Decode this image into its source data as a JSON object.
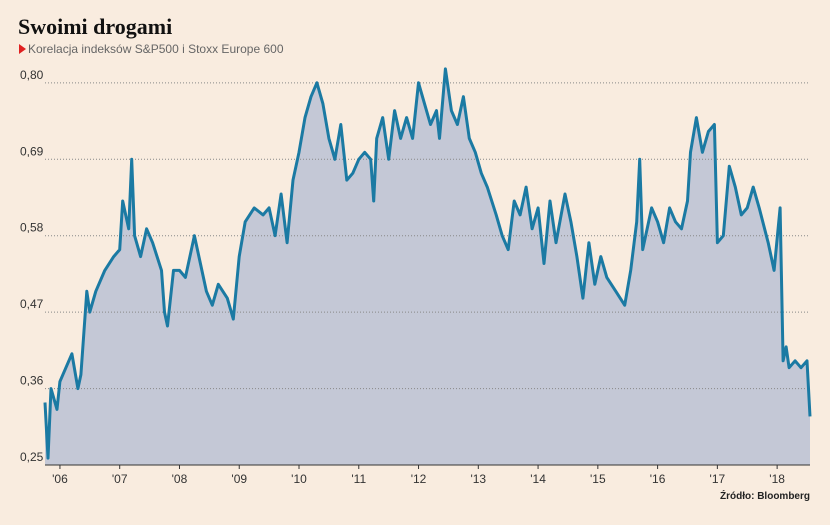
{
  "chart_data": {
    "type": "area",
    "title": "Swoimi drogami",
    "subtitle": "Korelacja indeksów S&P500 i Stoxx Europe 600",
    "source": "Źródło: Bloomberg",
    "color": "#1b7aa3",
    "area_color": "#c4c8d6",
    "grid": true,
    "xlim": [
      2005.75,
      2018.55
    ],
    "xticks": [
      {
        "value": 2006,
        "label": "'06"
      },
      {
        "value": 2007,
        "label": "'07"
      },
      {
        "value": 2008,
        "label": "'08"
      },
      {
        "value": 2009,
        "label": "'09"
      },
      {
        "value": 2010,
        "label": "'10"
      },
      {
        "value": 2011,
        "label": "'11"
      },
      {
        "value": 2012,
        "label": "'12"
      },
      {
        "value": 2013,
        "label": "'13"
      },
      {
        "value": 2014,
        "label": "'14"
      },
      {
        "value": 2015,
        "label": "'15"
      },
      {
        "value": 2016,
        "label": "'16"
      },
      {
        "value": 2017,
        "label": "'17"
      },
      {
        "value": 2018,
        "label": "'18"
      }
    ],
    "ylim": [
      0.25,
      0.83
    ],
    "yticks": [
      {
        "value": 0.25,
        "label": "0,25"
      },
      {
        "value": 0.36,
        "label": "0,36"
      },
      {
        "value": 0.47,
        "label": "0,47"
      },
      {
        "value": 0.58,
        "label": "0,58"
      },
      {
        "value": 0.69,
        "label": "0,69"
      },
      {
        "value": 0.8,
        "label": "0,80"
      }
    ],
    "x": [
      2005.75,
      2005.8,
      2005.85,
      2005.95,
      2006.0,
      2006.1,
      2006.2,
      2006.3,
      2006.35,
      2006.45,
      2006.5,
      2006.6,
      2006.75,
      2006.9,
      2007.0,
      2007.05,
      2007.15,
      2007.2,
      2007.25,
      2007.35,
      2007.45,
      2007.55,
      2007.7,
      2007.75,
      2007.8,
      2007.9,
      2008.0,
      2008.1,
      2008.25,
      2008.35,
      2008.45,
      2008.55,
      2008.65,
      2008.8,
      2008.9,
      2009.0,
      2009.1,
      2009.25,
      2009.4,
      2009.5,
      2009.6,
      2009.7,
      2009.8,
      2009.9,
      2010.0,
      2010.1,
      2010.2,
      2010.3,
      2010.4,
      2010.5,
      2010.6,
      2010.7,
      2010.8,
      2010.9,
      2011.0,
      2011.1,
      2011.2,
      2011.25,
      2011.3,
      2011.4,
      2011.5,
      2011.6,
      2011.7,
      2011.8,
      2011.9,
      2012.0,
      2012.1,
      2012.2,
      2012.3,
      2012.35,
      2012.45,
      2012.55,
      2012.65,
      2012.75,
      2012.85,
      2012.95,
      2013.05,
      2013.15,
      2013.3,
      2013.4,
      2013.5,
      2013.6,
      2013.7,
      2013.8,
      2013.9,
      2014.0,
      2014.1,
      2014.2,
      2014.3,
      2014.45,
      2014.55,
      2014.65,
      2014.75,
      2014.85,
      2014.95,
      2015.05,
      2015.15,
      2015.3,
      2015.45,
      2015.55,
      2015.65,
      2015.7,
      2015.75,
      2015.9,
      2016.0,
      2016.1,
      2016.2,
      2016.3,
      2016.4,
      2016.5,
      2016.55,
      2016.65,
      2016.75,
      2016.85,
      2016.95,
      2017.0,
      2017.1,
      2017.2,
      2017.3,
      2017.4,
      2017.5,
      2017.6,
      2017.7,
      2017.85,
      2017.95,
      2018.05,
      2018.1,
      2018.15,
      2018.2,
      2018.3,
      2018.4,
      2018.5,
      2018.55
    ],
    "values": [
      0.34,
      0.26,
      0.36,
      0.33,
      0.37,
      0.39,
      0.41,
      0.36,
      0.38,
      0.5,
      0.47,
      0.5,
      0.53,
      0.55,
      0.56,
      0.63,
      0.59,
      0.69,
      0.58,
      0.55,
      0.59,
      0.57,
      0.53,
      0.47,
      0.45,
      0.53,
      0.53,
      0.52,
      0.58,
      0.54,
      0.5,
      0.48,
      0.51,
      0.49,
      0.46,
      0.55,
      0.6,
      0.62,
      0.61,
      0.62,
      0.58,
      0.64,
      0.57,
      0.66,
      0.7,
      0.75,
      0.78,
      0.8,
      0.77,
      0.72,
      0.69,
      0.74,
      0.66,
      0.67,
      0.69,
      0.7,
      0.69,
      0.63,
      0.72,
      0.75,
      0.69,
      0.76,
      0.72,
      0.75,
      0.72,
      0.8,
      0.77,
      0.74,
      0.76,
      0.72,
      0.82,
      0.76,
      0.74,
      0.78,
      0.72,
      0.7,
      0.67,
      0.65,
      0.61,
      0.58,
      0.56,
      0.63,
      0.61,
      0.65,
      0.59,
      0.62,
      0.54,
      0.63,
      0.57,
      0.64,
      0.6,
      0.55,
      0.49,
      0.57,
      0.51,
      0.55,
      0.52,
      0.5,
      0.48,
      0.53,
      0.6,
      0.69,
      0.56,
      0.62,
      0.6,
      0.57,
      0.62,
      0.6,
      0.59,
      0.63,
      0.7,
      0.75,
      0.7,
      0.73,
      0.74,
      0.57,
      0.58,
      0.68,
      0.65,
      0.61,
      0.62,
      0.65,
      0.62,
      0.57,
      0.53,
      0.62,
      0.4,
      0.42,
      0.39,
      0.4,
      0.39,
      0.4,
      0.32
    ]
  }
}
